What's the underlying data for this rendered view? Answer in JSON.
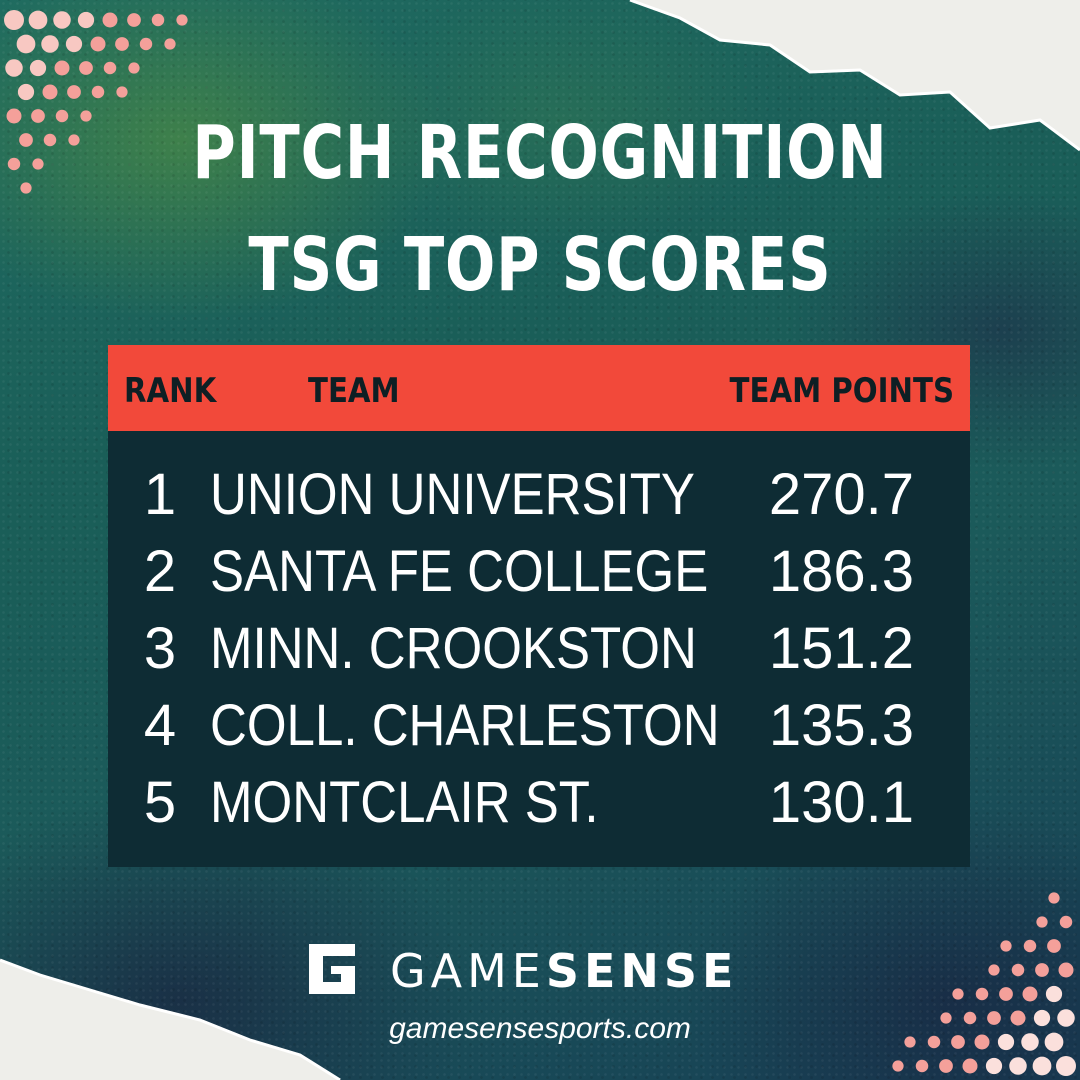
{
  "title": {
    "line1": "PITCH RECOGNITION",
    "line2": "TSG TOP SCORES"
  },
  "table": {
    "headers": {
      "rank": "RANK",
      "team": "TEAM",
      "points": "TEAM POINTS"
    },
    "rows": [
      {
        "rank": "1",
        "team": "UNION UNIVERSITY",
        "points": "270.7"
      },
      {
        "rank": "2",
        "team": "SANTA FE COLLEGE",
        "points": "186.3"
      },
      {
        "rank": "3",
        "team": "MINN. CROOKSTON",
        "points": "151.2"
      },
      {
        "rank": "4",
        "team": "COLL. CHARLESTON",
        "points": "135.3"
      },
      {
        "rank": "5",
        "team": "MONTCLAIR ST.",
        "points": "130.1"
      }
    ]
  },
  "brand": {
    "logo_icon": "g-logo-icon",
    "name_light": "GAME",
    "name_bold": "SENSE",
    "website": "gamesensesports.com"
  },
  "colors": {
    "header_bar": "#f2493a",
    "table_bg": "#0e2c34",
    "dot_pink": "#f4a09a",
    "text": "#ffffff"
  }
}
